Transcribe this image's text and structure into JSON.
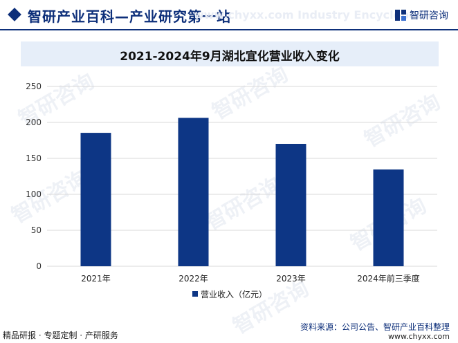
{
  "header": {
    "title": "智研产业百科—产业研究第一站",
    "ghost_text": "www.chyxx.com  Industry Encyclopedia",
    "brand_name": "智研咨询",
    "accent_color": "#0d2f7a"
  },
  "watermark": {
    "text": "智研咨询"
  },
  "chart_data": {
    "type": "bar",
    "title": "2021-2024年9月湖北宜化营业收入变化",
    "categories": [
      "2021年",
      "2022年",
      "2023年",
      "2024年前三季度"
    ],
    "series": [
      {
        "name": "营业收入（亿元）",
        "values": [
          185.5,
          206.3,
          170.2,
          134.5
        ],
        "color": "#0d3685"
      }
    ],
    "ylim": [
      0,
      250
    ],
    "yticks": [
      0,
      50,
      100,
      150,
      200,
      250
    ],
    "grid": true,
    "legend": "bottom"
  },
  "footer": {
    "left_text": "精品研报 · 专题定制 · 产研服务",
    "source_text": "资料来源：公司公告、智研产业百科整理",
    "url": "www.chyxx.com"
  }
}
